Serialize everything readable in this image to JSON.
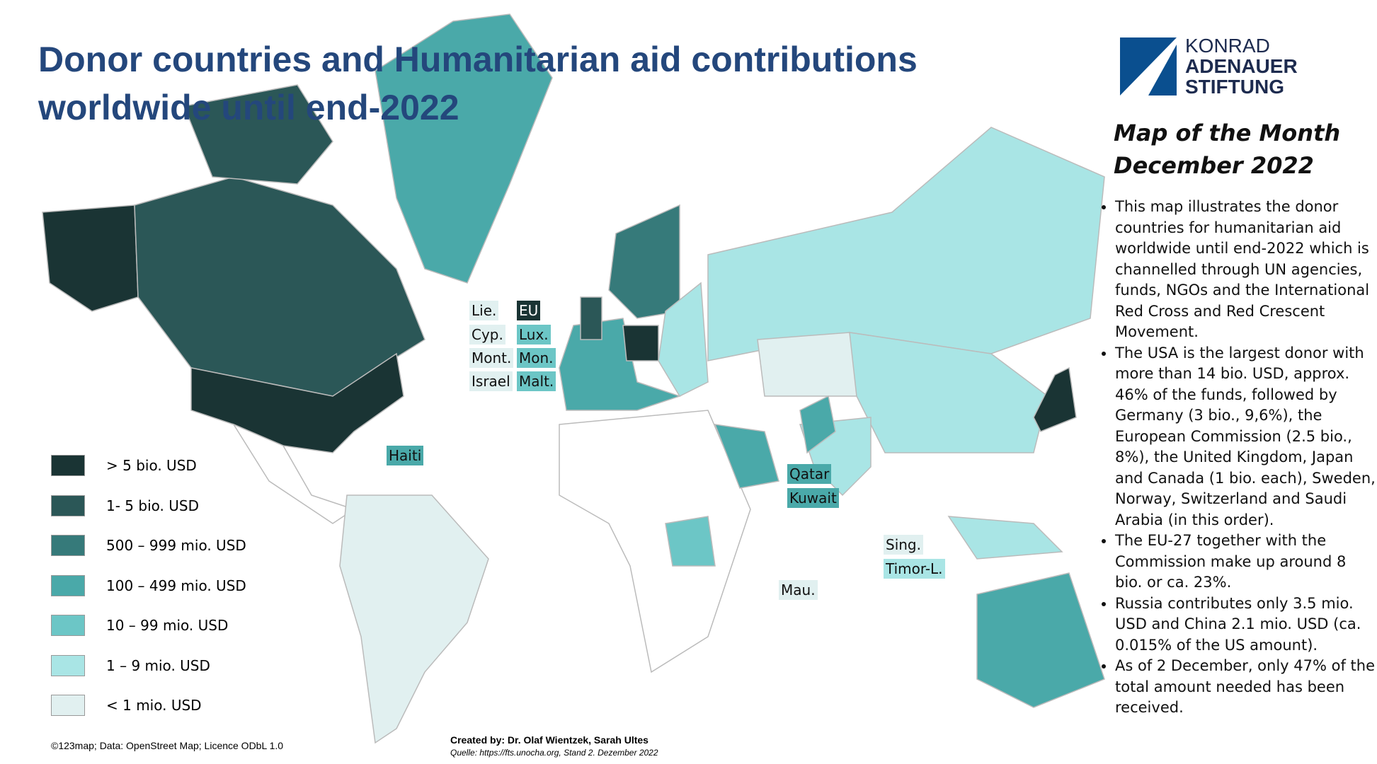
{
  "header": {
    "title": "Donor countries and Humanitarian aid contributions worldwide until end-2022",
    "logo": [
      "KONRAD",
      "ADENAUER",
      "STIFTUNG"
    ]
  },
  "sidebar": {
    "heading": "Map of the Month",
    "date": "December 2022",
    "bullets": [
      "This map illustrates the donor countries for humanitarian aid worldwide until end-2022 which is channelled through UN agencies, funds, NGOs and the International Red Cross and Red Crescent Movement.",
      "The USA is the largest donor with more than 14 bio. USD, approx. 46% of the funds, followed by Germany (3 bio., 9,6%), the European Commission (2.5 bio., 8%), the United Kingdom, Japan and Canada (1 bio. each), Sweden, Norway, Switzerland and Saudi Arabia (in this order).",
      "The EU-27 together with the Commission make up around 8 bio. or ca. 23%.",
      "Russia contributes only 3.5 mio. USD and China 2.1 mio. USD (ca. 0.015% of the US amount).",
      "As of 2 December, only 47% of the total amount needed has been received."
    ]
  },
  "legend": [
    {
      "label": "> 5 bio. USD",
      "color": "#1a3434"
    },
    {
      "label": "1- 5 bio. USD",
      "color": "#2b5757"
    },
    {
      "label": "500 – 999 mio. USD",
      "color": "#367a7a"
    },
    {
      "label": "100 – 499 mio. USD",
      "color": "#4aa9a9"
    },
    {
      "label": "10 – 99 mio. USD",
      "color": "#6cc6c6"
    },
    {
      "label": "1 – 9 mio. USD",
      "color": "#a9e5e5"
    },
    {
      "label": "< 1 mio. USD",
      "color": "#e1f0f0"
    }
  ],
  "country_labels": [
    "Lie.",
    "EU",
    "Cyp.",
    "Lux.",
    "Mont.",
    "Mon.",
    "Israel",
    "Malt.",
    "Haiti",
    "Qatar",
    "Kuwait",
    "Sing.",
    "Timor-L.",
    "Mau."
  ],
  "footer": {
    "license": "©123map; Data: OpenStreet Map; Licence ODbL 1.0",
    "created": "Created by: Dr. Olaf Wientzek, Sarah Ultes",
    "source": "Quelle: https://fts.unocha.org, Stand 2. Dezember 2022"
  }
}
